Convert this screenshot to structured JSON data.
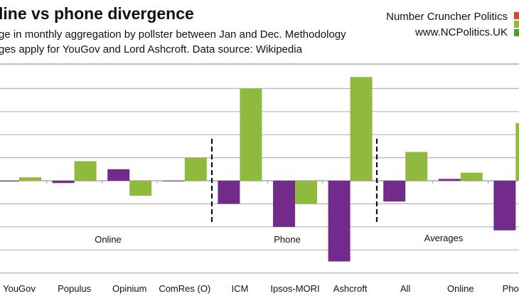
{
  "header": {
    "title": "line vs phone divergence",
    "subtitle_line1": "ge in monthly aggregation by pollster between Jan and Dec. Methodology",
    "subtitle_line2": "ges apply for YouGov and Lord Ashcroft. Data source: Wikipedia",
    "brand_name": "Number Cruncher Politics",
    "brand_url": "www.NCPolitics.UK",
    "brand_colors": [
      "#d9443a",
      "#8fba3e",
      "#4e9a2a"
    ]
  },
  "chart_data": {
    "type": "bar",
    "title": "line vs phone divergence",
    "categories": [
      "YouGov",
      "Populus",
      "Opinium",
      "ComRes (O)",
      "ICM",
      "Ipsos-MORI",
      "Ashcroft",
      "All",
      "Online",
      "Phone"
    ],
    "groups": [
      {
        "label": "Online",
        "categories": [
          "YouGov",
          "Populus",
          "Opinium",
          "ComRes (O)"
        ]
      },
      {
        "label": "Phone",
        "categories": [
          "ICM",
          "Ipsos-MORI",
          "Ashcroft"
        ]
      },
      {
        "label": "Averages",
        "categories": [
          "All",
          "Online",
          "Phone"
        ]
      }
    ],
    "series": [
      {
        "color": "#722b8a",
        "values": [
          -0.03,
          -0.1,
          0.5,
          0,
          -1.0,
          -2.0,
          -3.5,
          -0.9,
          0.08,
          -2.15
        ]
      },
      {
        "color": "#8fba3e",
        "values": [
          0.15,
          0.85,
          -0.65,
          1.0,
          4.0,
          -1.0,
          4.5,
          1.25,
          0.35,
          2.5
        ]
      }
    ],
    "ylim": [
      -4,
      5
    ],
    "grid": true,
    "xlabel": "",
    "ylabel": ""
  }
}
